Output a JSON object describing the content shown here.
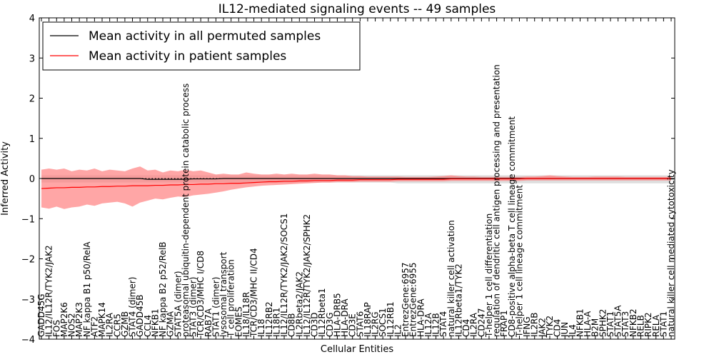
{
  "chart_data": {
    "type": "line",
    "title": "IL12-mediated signaling events -- 49 samples",
    "xlabel": "Cellular Entities",
    "ylabel": "Inferred Activity",
    "ylim": [
      -4,
      4
    ],
    "yticks": [
      -4,
      -3,
      -2,
      -1,
      0,
      1,
      2,
      3,
      4
    ],
    "grid": false,
    "legend_position": "top-left",
    "colors": {
      "permuted": "#000000",
      "patient": "#ff0000",
      "patient_band": "#ff8080",
      "permuted_band": "#c8c8c8",
      "zero_line": "#000000"
    },
    "categories": [
      "GADD45G",
      "IL12/IL12R/TYK2/JAK2",
      "FOS",
      "MAP2K6",
      "NOS2",
      "MAP2K3",
      "NF kappa B1 p50/RelA",
      "ATF2",
      "MAPK14",
      "IL2RA",
      "CCR5",
      "GZMB",
      "STAT4 (dimer)",
      "GADD45B",
      "CCL4",
      "NFKB1",
      "NF kappa B2 p52/RelB",
      "GZMA",
      "STAT5A (dimer)",
      "proteasomal ubiquitin-dependent protein catabolic process",
      "STAT3 (dimer)",
      "TCR/CD3/MHC I/CD8",
      "RAB7A",
      "STAT1 (dimer)",
      "lysosomal transport",
      "T cell proliferation",
      "EOMES",
      "IL18/IL18R",
      "TCR/CD3/MHC II/CD4",
      "IL18",
      "IL12RB2",
      "IL18R1",
      "IL12/IL12R/TYK2/JAK2/SOCS1",
      "CD8B",
      "IL2Rbeta2/JAK2",
      "IL12/IL12R/TYK2/JAK2/SPHK2",
      "CD3D",
      "IL12Rbeta1",
      "CD3G",
      "HLA-DRB5",
      "HLA-DRA",
      "CD3E",
      "STAT6",
      "IL18RAP",
      "IL2RG",
      "SOCS1",
      "IL12RB1",
      "IL2",
      "EntrezGene:6957",
      "EntrezGene:6955",
      "HLA-DRA",
      "IL12A",
      "IL12B",
      "STAT4",
      "natural killer cell activation",
      "IL12Rbeta1/TYK2",
      "CD4",
      "IL2RA",
      "CD247",
      "T-helper 1 cell differentiation",
      "regulation of dendritic cell antigen processing and presentation",
      "FRAP1",
      "CD8-positive alpha-beta T cell lineage commitment",
      "T-helper 1 cell lineage commitment",
      "IFNG",
      "IL2RB",
      "JAK2",
      "TYK2",
      "CD4",
      "JUN",
      "IL4",
      "NFKB1",
      "HLA-A",
      "B2M",
      "SPHK2",
      "STAT1",
      "STAT5A",
      "STAT3",
      "NFKB2",
      "RELB",
      "RIPK2",
      "RELA",
      "STAT1",
      "natural killer cell mediated cytotoxicity"
    ],
    "series": [
      {
        "name": "Mean activity in all permuted samples",
        "values": [
          0,
          0,
          0,
          0,
          0,
          0,
          0,
          0,
          0,
          0,
          0,
          0,
          0,
          0,
          -0.02,
          -0.02,
          -0.02,
          -0.02,
          -0.02,
          -0.02,
          -0.01,
          -0.01,
          -0.01,
          -0.01,
          0,
          0,
          0,
          0,
          0,
          0,
          0,
          0,
          0,
          0,
          0,
          0,
          0,
          0,
          0,
          0,
          0,
          0,
          0,
          0,
          0,
          0,
          0,
          0,
          0,
          0,
          0,
          0,
          0,
          0,
          0,
          0,
          0,
          0,
          0,
          0,
          0,
          0,
          0,
          0,
          0,
          0,
          0,
          0,
          0,
          0,
          0,
          0,
          0,
          0,
          0,
          0,
          0,
          0,
          0,
          0,
          0,
          0,
          0,
          0
        ]
      },
      {
        "name": "Mean activity in patient samples",
        "values": [
          -0.25,
          -0.24,
          -0.23,
          -0.23,
          -0.22,
          -0.22,
          -0.21,
          -0.21,
          -0.2,
          -0.2,
          -0.19,
          -0.19,
          -0.18,
          -0.18,
          -0.18,
          -0.17,
          -0.17,
          -0.16,
          -0.16,
          -0.15,
          -0.15,
          -0.14,
          -0.14,
          -0.13,
          -0.13,
          -0.12,
          -0.12,
          -0.11,
          -0.1,
          -0.09,
          -0.08,
          -0.08,
          -0.07,
          -0.07,
          -0.06,
          -0.06,
          -0.05,
          -0.05,
          -0.05,
          -0.04,
          -0.04,
          -0.04,
          -0.03,
          -0.03,
          -0.03,
          -0.03,
          -0.03,
          -0.02,
          -0.02,
          -0.02,
          -0.02,
          -0.02,
          -0.02,
          -0.02,
          -0.01,
          -0.01,
          -0.01,
          -0.01,
          -0.01,
          -0.01,
          -0.01,
          -0.01,
          -0.01,
          -0.01,
          0,
          0,
          0,
          0,
          0,
          0,
          0,
          0,
          0,
          0,
          0,
          0,
          0,
          0,
          0,
          0,
          0,
          0,
          0,
          0
        ]
      }
    ],
    "patient_band": {
      "upper": [
        0.22,
        0.25,
        0.22,
        0.25,
        0.18,
        0.22,
        0.2,
        0.25,
        0.18,
        0.22,
        0.2,
        0.18,
        0.25,
        0.3,
        0.2,
        0.22,
        0.15,
        0.2,
        0.18,
        0.22,
        0.18,
        0.2,
        0.15,
        0.1,
        0.12,
        0.1,
        0.1,
        0.15,
        0.12,
        0.1,
        0.1,
        0.12,
        0.1,
        0.12,
        0.1,
        0.1,
        0.12,
        0.1,
        0.1,
        0.08,
        0.08,
        0.06,
        0.06,
        0.05,
        0.05,
        0.05,
        0.05,
        0.05,
        0.04,
        0.04,
        0.04,
        0.04,
        0.05,
        0.06,
        0.08,
        0.06,
        0.05,
        0.05,
        0.04,
        0.04,
        0.04,
        0.04,
        0.04,
        0.04,
        0.05,
        0.05,
        0.06,
        0.08,
        0.06,
        0.05,
        0.04,
        0.04,
        0.04,
        0.05,
        0.05,
        0.05,
        0.05,
        0.04,
        0.04,
        0.04,
        0.04,
        0.04,
        0.04,
        0.04
      ],
      "lower": [
        -0.72,
        -0.75,
        -0.7,
        -0.76,
        -0.72,
        -0.7,
        -0.65,
        -0.68,
        -0.62,
        -0.6,
        -0.58,
        -0.62,
        -0.7,
        -0.6,
        -0.55,
        -0.5,
        -0.52,
        -0.48,
        -0.45,
        -0.46,
        -0.42,
        -0.4,
        -0.38,
        -0.35,
        -0.32,
        -0.28,
        -0.25,
        -0.22,
        -0.2,
        -0.18,
        -0.17,
        -0.16,
        -0.15,
        -0.14,
        -0.13,
        -0.12,
        -0.11,
        -0.1,
        -0.1,
        -0.09,
        -0.09,
        -0.09,
        -0.08,
        -0.08,
        -0.08,
        -0.08,
        -0.08,
        -0.07,
        -0.07,
        -0.07,
        -0.07,
        -0.07,
        -0.07,
        -0.07,
        -0.06,
        -0.06,
        -0.06,
        -0.06,
        -0.06,
        -0.06,
        -0.06,
        -0.06,
        -0.06,
        -0.06,
        -0.05,
        -0.05,
        -0.05,
        -0.05,
        -0.05,
        -0.05,
        -0.05,
        -0.05,
        -0.05,
        -0.05,
        -0.05,
        -0.05,
        -0.05,
        -0.05,
        -0.05,
        -0.05,
        -0.05,
        -0.05,
        -0.05,
        -0.05
      ]
    },
    "permuted_band": {
      "upper": [
        0.08,
        0.08,
        0.08,
        0.08,
        0.08,
        0.08,
        0.08,
        0.08,
        0.08,
        0.08,
        0.08,
        0.08,
        0.08,
        0.08,
        0.08,
        0.08,
        0.08,
        0.08,
        0.08,
        0.08,
        0.08,
        0.08,
        0.08,
        0.08,
        0.08,
        0.08,
        0.08,
        0.08,
        0.08,
        0.08,
        0.08,
        0.08,
        0.08,
        0.08,
        0.08,
        0.08,
        0.08,
        0.08,
        0.08,
        0.08,
        0.08,
        0.08,
        0.08,
        0.08,
        0.08,
        0.08,
        0.08,
        0.08,
        0.08,
        0.08,
        0.08,
        0.08,
        0.08,
        0.08,
        0.08,
        0.08,
        0.08,
        0.08,
        0.08,
        0.08,
        0.08,
        0.08,
        0.08,
        0.08,
        0.08,
        0.08,
        0.08,
        0.08,
        0.08,
        0.08,
        0.08,
        0.08,
        0.08,
        0.08,
        0.08,
        0.08,
        0.08,
        0.08,
        0.08,
        0.08,
        0.08,
        0.08,
        0.08,
        0.08
      ],
      "lower": [
        -0.1,
        -0.1,
        -0.1,
        -0.1,
        -0.1,
        -0.1,
        -0.1,
        -0.1,
        -0.1,
        -0.1,
        -0.1,
        -0.1,
        -0.1,
        -0.1,
        -0.1,
        -0.1,
        -0.1,
        -0.1,
        -0.1,
        -0.1,
        -0.1,
        -0.1,
        -0.1,
        -0.1,
        -0.1,
        -0.1,
        -0.1,
        -0.1,
        -0.1,
        -0.1,
        -0.1,
        -0.1,
        -0.1,
        -0.1,
        -0.1,
        -0.1,
        -0.1,
        -0.1,
        -0.1,
        -0.1,
        -0.1,
        -0.1,
        -0.1,
        -0.1,
        -0.1,
        -0.1,
        -0.1,
        -0.12,
        -0.12,
        -0.12,
        -0.12,
        -0.12,
        -0.12,
        -0.12,
        -0.12,
        -0.12,
        -0.12,
        -0.12,
        -0.12,
        -0.12,
        -0.12,
        -0.12,
        -0.12,
        -0.12,
        -0.12,
        -0.12,
        -0.12,
        -0.12,
        -0.12,
        -0.12,
        -0.12,
        -0.12,
        -0.12,
        -0.12,
        -0.12,
        -0.12,
        -0.12,
        -0.12,
        -0.12,
        -0.12,
        -0.12,
        -0.12,
        -0.12,
        -0.12
      ]
    }
  }
}
